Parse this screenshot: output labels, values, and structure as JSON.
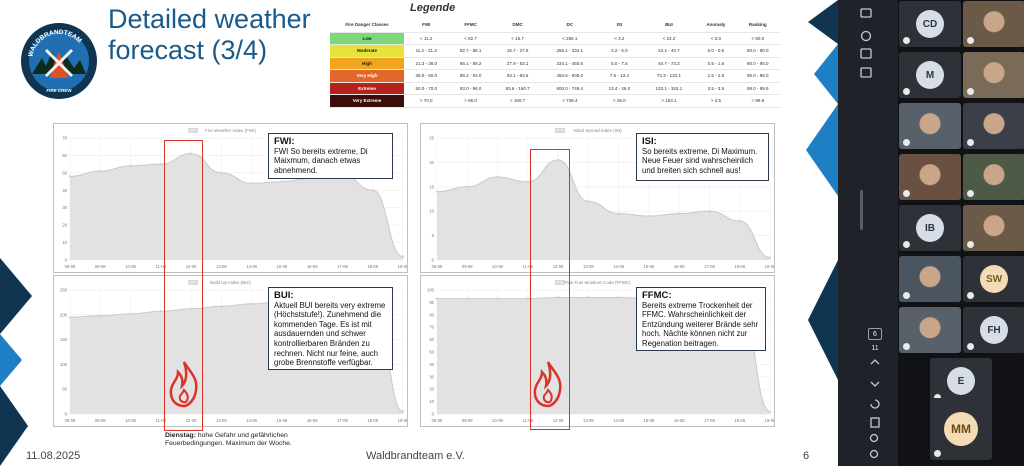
{
  "slide": {
    "title_line1": "Detailed weather",
    "title_line2": "forecast (3/4)",
    "footer_date": "11.08.2025",
    "footer_org": "Waldbrandteam e.V.",
    "footer_page": "6",
    "logo_text_top": "WALDBRANDTEAM",
    "logo_text_bottom": "FIRE CREW"
  },
  "legend": {
    "title": "Legende",
    "headers": [
      "Fire Danger Classes",
      "FWI",
      "FFMC",
      "DMC",
      "DC",
      "ISI",
      "BUI",
      "Anomaly",
      "Ranking"
    ],
    "rows": [
      {
        "label": "Low",
        "color": "#7bd87b",
        "text_color": "#1a1a1a",
        "values": [
          "< 11.2",
          "< 82.7",
          "< 15.7",
          "< 256.1",
          "< 3.2",
          "< 24.2",
          "< 0.0",
          "< 80.0"
        ]
      },
      {
        "label": "Moderate",
        "color": "#e8e23c",
        "text_color": "#1a1a1a",
        "values": [
          "11.2 - 21.3",
          "82.7 - 86.1",
          "15.7 - 27.9",
          "256.1 - 334.1",
          "3.2 - 5.0",
          "24.2 - 40.7",
          "0.0 - 0.5",
          "80.0 - 90.0"
        ]
      },
      {
        "label": "High",
        "color": "#f2a61f",
        "text_color": "#1a1a1a",
        "values": [
          "21.3 - 38.0",
          "86.1 - 89.2",
          "27.9 - 53.1",
          "334.1 - 450.6",
          "5.0 - 7.5",
          "40.7 - 73.3",
          "0.5 - 1.5",
          "90.0 - 95.0"
        ]
      },
      {
        "label": "Very High",
        "color": "#e4672a",
        "text_color": "#ffffff",
        "values": [
          "38.0 - 50.0",
          "89.2 - 93.0",
          "53.1 - 83.6",
          "450.6 - 600.0",
          "7.5 - 13.4",
          "73.3 - 133.1",
          "1.5 - 2.5",
          "95.0 - 98.0"
        ]
      },
      {
        "label": "Extreme",
        "color": "#b3221b",
        "text_color": "#ffffff",
        "values": [
          "50.0 - 70.0",
          "93.0 - 96.0",
          "83.6 - 160.7",
          "600.0 - 749.4",
          "13.4 - 26.0",
          "133.1 - 153.1",
          "2.5 - 3.5",
          "98.0 - 99.9"
        ]
      },
      {
        "label": "Very Extreme",
        "color": "#3a0d0a",
        "text_color": "#ffffff",
        "values": [
          "> 70.0",
          "> 96.0",
          "> 160.7",
          "> 749.4",
          "> 26.0",
          "> 153.1",
          "> 3.5",
          "> 99.9"
        ]
      }
    ]
  },
  "x_ticks": [
    "08-08",
    "09-08",
    "10-08",
    "11-08",
    "12-08",
    "13-08",
    "14-08",
    "15-08",
    "16-08",
    "17-08",
    "18-08",
    "19-08"
  ],
  "chart_data": [
    {
      "type": "area",
      "id": "fwi",
      "title": "Fire Weather Index (FWI)",
      "ylim": [
        0,
        70
      ],
      "yticks": [
        0,
        10,
        20,
        30,
        40,
        50,
        60,
        70
      ],
      "x": [
        "08-08",
        "09-08",
        "10-08",
        "11-08",
        "12-08",
        "13-08",
        "14-08",
        "15-08",
        "16-08",
        "17-08",
        "18-08",
        "19-08"
      ],
      "values": [
        48,
        51,
        54,
        55,
        61,
        50,
        44,
        45,
        47,
        49,
        40,
        2
      ]
    },
    {
      "type": "area",
      "id": "isi",
      "title": "Initial Spread Index (ISI)",
      "ylim": [
        0,
        25
      ],
      "yticks": [
        0,
        5,
        10,
        15,
        20,
        25
      ],
      "x": [
        "08-08",
        "09-08",
        "10-08",
        "11-08",
        "12-08",
        "13-08",
        "14-08",
        "15-08",
        "16-08",
        "17-08",
        "18-08",
        "19-08"
      ],
      "values": [
        14,
        15,
        17,
        16,
        20.5,
        12,
        9.5,
        9,
        9.5,
        10,
        8,
        0.5
      ]
    },
    {
      "type": "area",
      "id": "bui",
      "title": "Build Up Index (BUI)",
      "ylim": [
        0,
        250
      ],
      "yticks": [
        0,
        50,
        100,
        150,
        200,
        250
      ],
      "x": [
        "08-08",
        "09-08",
        "10-08",
        "11-08",
        "12-08",
        "13-08",
        "14-08",
        "15-08",
        "16-08",
        "17-08",
        "18-08",
        "19-08"
      ],
      "values": [
        195,
        198,
        202,
        207,
        212,
        217,
        222,
        226,
        230,
        233,
        236,
        5
      ]
    },
    {
      "type": "area",
      "id": "ffmc",
      "title": "Fine Fuel Moisture Code (FFMC)",
      "ylim": [
        0,
        100
      ],
      "yticks": [
        0,
        10,
        20,
        30,
        40,
        50,
        60,
        70,
        80,
        90,
        100
      ],
      "x": [
        "08-08",
        "09-08",
        "10-08",
        "11-08",
        "12-08",
        "13-08",
        "14-08",
        "15-08",
        "16-08",
        "17-08",
        "18-08",
        "19-08"
      ],
      "values": [
        93,
        93,
        93,
        93,
        94,
        94,
        94,
        93,
        93,
        93,
        92,
        2
      ]
    }
  ],
  "annotations": {
    "fwi": {
      "title": "FWI:",
      "text": "FWI So bereits extreme, Di Maixmum, danach etwas abnehmend."
    },
    "isi": {
      "title": "ISI:",
      "text": "So bereits extreme, Di Maximum. Neue Feuer sind wahrscheinlich und breiten sich schnell aus!"
    },
    "bui": {
      "title": "BUI:",
      "text": "Aktuell BUI bereits very extreme (Höchststufe!). Zunehmend die kommenden Tage. Es ist mit ausdauernden und schwer kontrollierbaren Bränden zu rechnen. Nicht nur feine, auch grobe Brennstoffe verfügbar."
    },
    "ffmc": {
      "title": "FFMC:",
      "text": "Bereits extreme Trockenheit der FFMC. Wahrscheinlichkeit der Entzündung weiterer Brände sehr hoch. Nächte können nicht zur Regenation beitragen."
    }
  },
  "note": {
    "bold": "Dienstag:",
    "text": " hohe Gefahr und gefährlichen Feuerbedingungen. Maximum der Woche."
  },
  "meeting": {
    "participants": [
      {
        "initials": "CD"
      },
      {
        "initials": ""
      },
      {
        "initials": "M"
      },
      {
        "initials": ""
      },
      {
        "initials": ""
      },
      {
        "initials": ""
      },
      {
        "initials": ""
      },
      {
        "initials": ""
      },
      {
        "initials": "IB"
      },
      {
        "initials": ""
      },
      {
        "initials": ""
      },
      {
        "initials": "SW"
      },
      {
        "initials": ""
      },
      {
        "initials": "FH"
      },
      {
        "initials": "E"
      },
      {
        "initials": "MM"
      }
    ],
    "page_current": "6",
    "page_total": "11"
  },
  "colors": {
    "title": "#1a5a8a",
    "accent_blue": "#1f7fc4",
    "red": "#d9332b",
    "area_fill": "#e2e2e2",
    "area_line": "#c9c9c9"
  }
}
